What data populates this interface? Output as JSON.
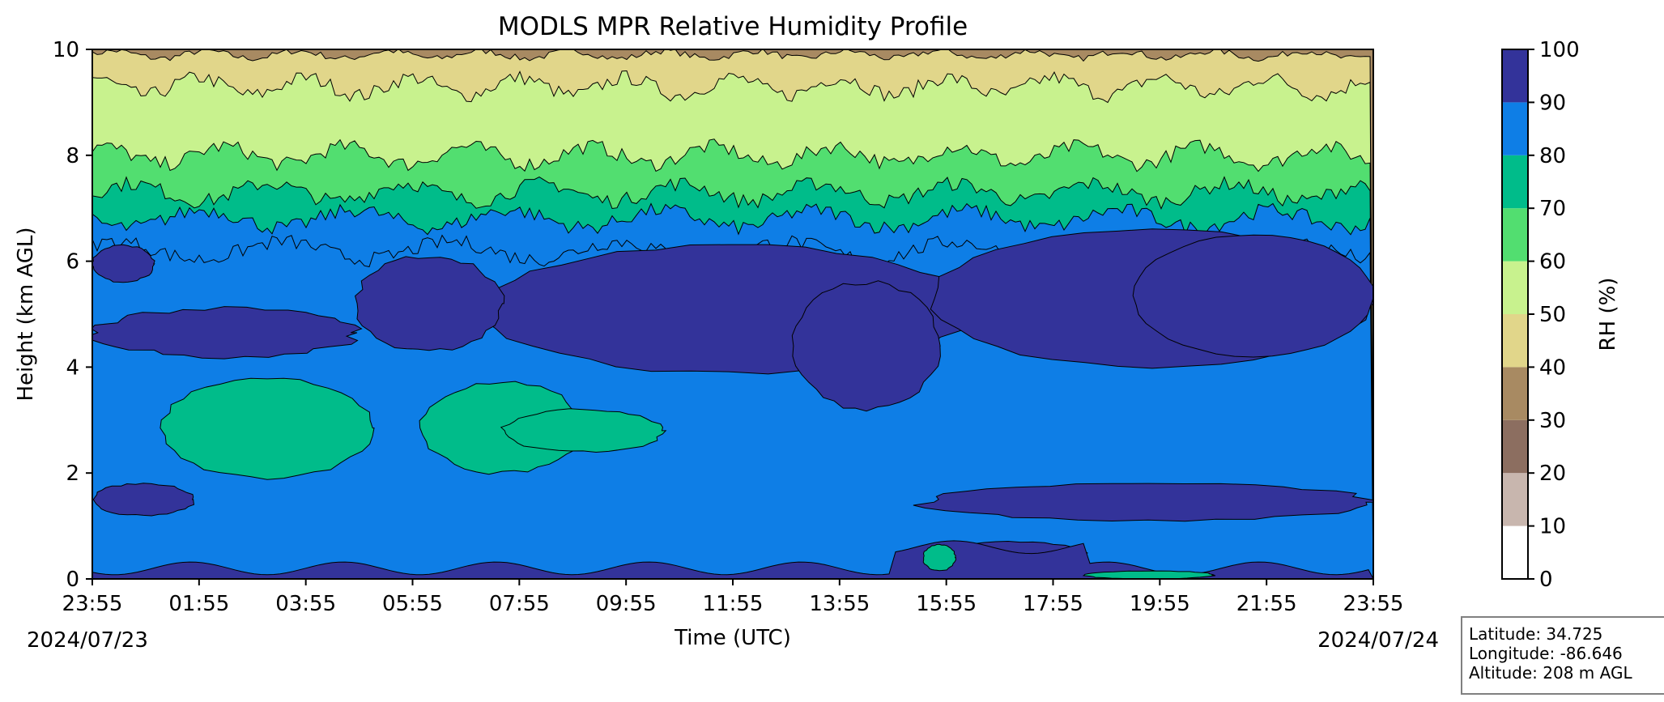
{
  "chart_data": {
    "type": "heatmap",
    "title": "MODLS MPR Relative Humidity Profile",
    "xlabel": "Time (UTC)",
    "ylabel": "Height (km AGL)",
    "ylim": [
      0,
      10
    ],
    "x_ticks": [
      "23:55",
      "01:55",
      "03:55",
      "05:55",
      "07:55",
      "09:55",
      "11:55",
      "13:55",
      "15:55",
      "17:55",
      "19:55",
      "21:55",
      "23:55"
    ],
    "y_ticks": [
      0,
      2,
      4,
      6,
      8,
      10
    ],
    "start_date": "2024/07/23",
    "end_date": "2024/07/24",
    "colorbar": {
      "label": "RH (%)",
      "ticks": [
        0,
        10,
        20,
        30,
        40,
        50,
        60,
        70,
        80,
        90,
        100
      ],
      "colors": [
        "#ffffff",
        "#c8b6ae",
        "#8c6e60",
        "#a88a62",
        "#e1d68a",
        "#c8f28e",
        "#52de70",
        "#00bc8a",
        "#0e7ee6",
        "#33339a"
      ]
    },
    "profile_boundaries_km": [
      {
        "rh_percent": 40,
        "height_km": 9.9
      },
      {
        "rh_percent": 50,
        "height_km": 9.3
      },
      {
        "rh_percent": 60,
        "height_km": 8.0
      },
      {
        "rh_percent": 70,
        "height_km": 7.3
      },
      {
        "rh_percent": 80,
        "height_km": 6.8
      },
      {
        "rh_percent": 90,
        "height_km": 6.2
      }
    ],
    "grid": false
  },
  "info": {
    "latitude": "Latitude: 34.725",
    "longitude": "Longitude: -86.646",
    "altitude": "Altitude: 208 m AGL"
  }
}
